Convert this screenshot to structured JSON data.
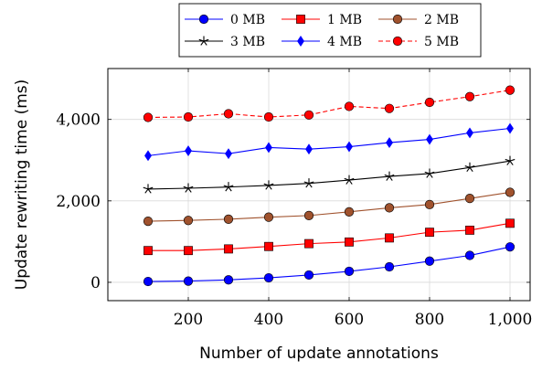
{
  "chart_data": {
    "type": "line",
    "title": "",
    "xlabel": "Number of update annotations",
    "ylabel": "Update rewriting time (ms)",
    "x": [
      100,
      200,
      300,
      400,
      500,
      600,
      700,
      800,
      900,
      1000
    ],
    "xlim": [
      0,
      1050
    ],
    "ylim": [
      -450,
      5250
    ],
    "x_ticks": [
      200,
      400,
      600,
      800,
      1000
    ],
    "x_tick_labels": [
      "200",
      "400",
      "600",
      "800",
      "1,000"
    ],
    "y_ticks": [
      0,
      2000,
      4000
    ],
    "y_tick_labels": [
      "0",
      "2,000",
      "4,000"
    ],
    "grid": true,
    "legend_position": "top-center",
    "series": [
      {
        "name": "0 MB",
        "color": "#0000ff",
        "marker": "circle",
        "dash": "solid",
        "values": [
          20,
          30,
          60,
          110,
          180,
          270,
          380,
          520,
          660,
          870
        ]
      },
      {
        "name": "1 MB",
        "color": "#ff0000",
        "marker": "square",
        "dash": "solid",
        "values": [
          780,
          780,
          820,
          880,
          950,
          990,
          1090,
          1230,
          1280,
          1450
        ]
      },
      {
        "name": "2 MB",
        "color": "#a0522d",
        "marker": "circle",
        "dash": "solid",
        "values": [
          1500,
          1520,
          1550,
          1600,
          1640,
          1730,
          1830,
          1910,
          2060,
          2210
        ]
      },
      {
        "name": "3 MB",
        "color": "#000000",
        "marker": "star",
        "dash": "solid",
        "values": [
          2290,
          2310,
          2340,
          2380,
          2430,
          2510,
          2600,
          2670,
          2820,
          2980
        ]
      },
      {
        "name": "4 MB",
        "color": "#0000ff",
        "marker": "diamond",
        "dash": "solid",
        "values": [
          3110,
          3230,
          3160,
          3310,
          3270,
          3330,
          3430,
          3510,
          3670,
          3780
        ]
      },
      {
        "name": "5 MB",
        "color": "#ff0000",
        "marker": "circle",
        "dash": "dashed",
        "values": [
          4050,
          4060,
          4140,
          4060,
          4110,
          4320,
          4270,
          4420,
          4560,
          4720
        ]
      }
    ]
  }
}
